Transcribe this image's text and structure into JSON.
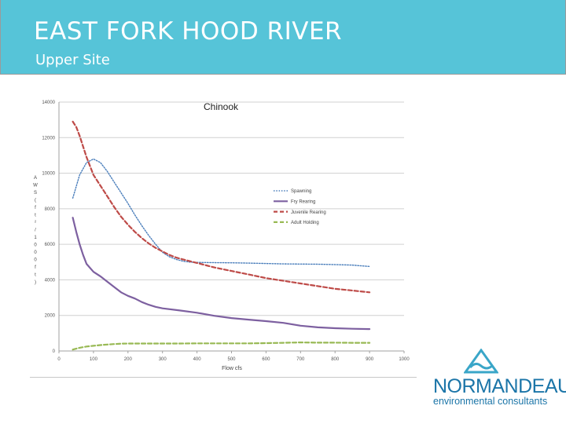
{
  "header": {
    "title": "EAST FORK HOOD RIVER",
    "subtitle": "Upper Site",
    "background_color": "#56c4d8"
  },
  "logo": {
    "name": "NORMANDEAU",
    "tagline": "environmental consultants",
    "color": "#1b75a8",
    "icon": "triangle-wave-icon"
  },
  "chart_data": {
    "type": "line",
    "title": "Chinook",
    "xlabel": "Flow cfs",
    "ylabel": "AWS (ft²/1000 ft)",
    "xlim": [
      0,
      1000
    ],
    "ylim": [
      0,
      14000
    ],
    "x_ticks": [
      "0",
      "100",
      "200",
      "300",
      "400",
      "500",
      "600",
      "700",
      "800",
      "900",
      "1000"
    ],
    "y_ticks": [
      "0",
      "2000",
      "4000",
      "6000",
      "8000",
      "10000",
      "12000",
      "14000"
    ],
    "grid": "horizontal",
    "legend_position": "right",
    "series": [
      {
        "name": "Spawning",
        "color": "#4a7ebb",
        "style": "dotted",
        "x": [
          40,
          60,
          80,
          100,
          120,
          140,
          160,
          180,
          200,
          220,
          240,
          260,
          280,
          300,
          320,
          340,
          360,
          380,
          400,
          450,
          500,
          550,
          600,
          650,
          700,
          750,
          800,
          850,
          900
        ],
        "y": [
          8600,
          9900,
          10600,
          10800,
          10600,
          10100,
          9500,
          8900,
          8300,
          7650,
          7050,
          6500,
          6000,
          5550,
          5300,
          5150,
          5050,
          5000,
          4980,
          4970,
          4960,
          4940,
          4920,
          4900,
          4890,
          4880,
          4860,
          4830,
          4750
        ]
      },
      {
        "name": "Fry Rearing",
        "color": "#7d60a0",
        "style": "solid",
        "x": [
          40,
          50,
          60,
          70,
          80,
          100,
          120,
          140,
          160,
          180,
          200,
          220,
          240,
          260,
          280,
          300,
          350,
          400,
          450,
          500,
          550,
          600,
          650,
          700,
          750,
          800,
          850,
          900
        ],
        "y": [
          7500,
          6700,
          6000,
          5400,
          4900,
          4450,
          4200,
          3900,
          3600,
          3300,
          3100,
          2950,
          2750,
          2600,
          2480,
          2400,
          2280,
          2150,
          1980,
          1850,
          1760,
          1680,
          1580,
          1420,
          1330,
          1280,
          1250,
          1230
        ]
      },
      {
        "name": "Juvenile Rearing",
        "color": "#be4b48",
        "style": "dashed",
        "x": [
          40,
          50,
          60,
          70,
          80,
          90,
          100,
          120,
          140,
          160,
          180,
          200,
          220,
          240,
          260,
          280,
          300,
          320,
          340,
          360,
          380,
          400,
          450,
          500,
          550,
          600,
          650,
          700,
          750,
          800,
          850,
          900
        ],
        "y": [
          12900,
          12600,
          12100,
          11500,
          10900,
          10400,
          9900,
          9300,
          8700,
          8100,
          7550,
          7100,
          6700,
          6350,
          6050,
          5800,
          5600,
          5400,
          5250,
          5150,
          5050,
          4950,
          4700,
          4500,
          4300,
          4100,
          3950,
          3800,
          3650,
          3500,
          3400,
          3300
        ]
      },
      {
        "name": "Adult Holding",
        "color": "#98b954",
        "style": "dashed",
        "x": [
          40,
          60,
          80,
          100,
          120,
          140,
          160,
          180,
          200,
          250,
          300,
          350,
          400,
          450,
          500,
          550,
          600,
          650,
          700,
          750,
          800,
          850,
          900
        ],
        "y": [
          80,
          180,
          250,
          290,
          330,
          360,
          390,
          410,
          420,
          420,
          420,
          420,
          430,
          430,
          430,
          430,
          440,
          460,
          480,
          470,
          470,
          460,
          460
        ]
      }
    ]
  }
}
